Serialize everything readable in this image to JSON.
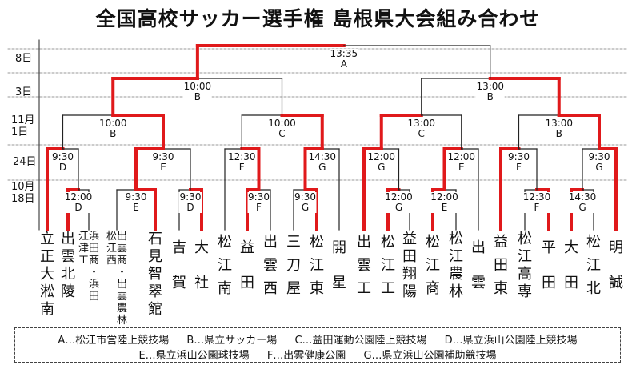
{
  "title": "全国高校サッカー選手権 島根県大会組み合わせ",
  "round_labels": [
    "8日",
    "3日",
    "11月 1日",
    "24日",
    "10月 18日"
  ],
  "teams": [
    "立正大淞南",
    "出雲北陵",
    "浜田商・江津工・浜田",
    "松江西・出雲商・出雲農林",
    "石見智翠館",
    "吉賀",
    "大社",
    "松江南",
    "益田",
    "出雲西",
    "三刀屋",
    "松江東",
    "開星",
    "出雲工",
    "松江工",
    "益田翔陽",
    "松江商",
    "松江農林",
    "出雲",
    "益田東",
    "松江高専",
    "平田",
    "大田",
    "松江北",
    "明誠"
  ],
  "matches": {
    "final": {
      "time": "13:35",
      "venue": "A"
    },
    "r3": [
      {
        "time": "10:00",
        "venue": "B"
      },
      {
        "time": "13:00",
        "venue": "B"
      }
    ],
    "r2": [
      {
        "time": "10:00",
        "venue": "B"
      },
      {
        "time": "10:00",
        "venue": "C"
      },
      {
        "time": "13:00",
        "venue": "C"
      },
      {
        "time": "13:00",
        "venue": "B"
      }
    ],
    "r1": [
      {
        "time": "9:30",
        "venue": "D"
      },
      {
        "time": "9:30",
        "venue": "E"
      },
      {
        "time": "12:30",
        "venue": "F"
      },
      {
        "time": "14:30",
        "venue": "G"
      },
      {
        "time": "12:00",
        "venue": "G"
      },
      {
        "time": "12:00",
        "venue": "E"
      },
      {
        "time": "9:30",
        "venue": "F"
      },
      {
        "time": "9:30",
        "venue": "G"
      }
    ],
    "r0": [
      {
        "time": "12:00",
        "venue": "D"
      },
      {
        "time": "9:30",
        "venue": "E"
      },
      {
        "time": "9:30",
        "venue": "D"
      },
      {
        "time": "9:30",
        "venue": "F"
      },
      {
        "time": "9:30",
        "venue": "G"
      },
      {
        "time": "12:00",
        "venue": "G"
      },
      {
        "time": "12:00",
        "venue": "E"
      },
      {
        "time": "12:30",
        "venue": "F"
      },
      {
        "time": "14:30",
        "venue": "G"
      }
    ]
  },
  "legend": {
    "row1": [
      "A…松江市営陸上競技場",
      "B…県立サッカー場",
      "C…益田運動公園陸上競技場",
      "D…県立浜山公園陸上競技場"
    ],
    "row2": [
      "E…県立浜山公園球技場",
      "F…出雲健康公園",
      "G…県立浜山公園補助競技場"
    ]
  },
  "colors": {
    "winner_line": "#e0191b",
    "line": "#222222",
    "grid": "#777777"
  }
}
